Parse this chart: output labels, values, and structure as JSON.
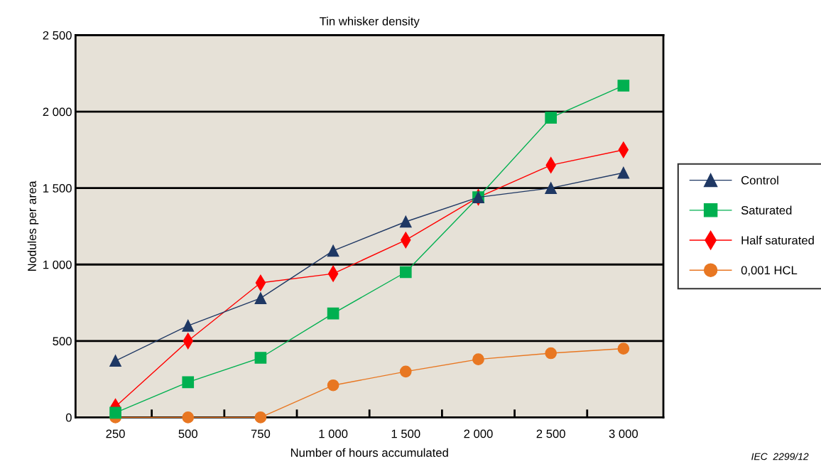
{
  "chart_data": {
    "type": "line",
    "title": "Tin whisker density",
    "xlabel": "Number of hours accumulated",
    "ylabel": "Nodules per area",
    "categories": [
      "250",
      "500",
      "750",
      "1 000",
      "1 500",
      "2 000",
      "2 500",
      "3 000"
    ],
    "series": [
      {
        "name": "Control",
        "color": "#1f3864",
        "marker": "triangle",
        "values": [
          370,
          600,
          780,
          1090,
          1280,
          1440,
          1500,
          1600
        ]
      },
      {
        "name": "Saturated",
        "color": "#00b050",
        "marker": "square",
        "values": [
          30,
          230,
          390,
          680,
          950,
          1440,
          1960,
          2170
        ]
      },
      {
        "name": "Half saturated",
        "color": "#ff0000",
        "marker": "diamond",
        "values": [
          70,
          500,
          880,
          940,
          1160,
          1440,
          1650,
          1750
        ]
      },
      {
        "name": "0,001 HCL",
        "color": "#e87722",
        "marker": "circle",
        "values": [
          0,
          0,
          0,
          210,
          300,
          380,
          420,
          450
        ]
      }
    ],
    "ylim": [
      0,
      2500
    ],
    "yticks": [
      {
        "value": 0,
        "label": "0"
      },
      {
        "value": 500,
        "label": "500"
      },
      {
        "value": 1000,
        "label": "1 000"
      },
      {
        "value": 1500,
        "label": "1 500"
      },
      {
        "value": 2000,
        "label": "2 000"
      },
      {
        "value": 2500,
        "label": "2 500"
      }
    ],
    "grid": "y",
    "legend": "right",
    "line_style": "solid",
    "annotations": [
      "IEC  2299/12"
    ]
  }
}
